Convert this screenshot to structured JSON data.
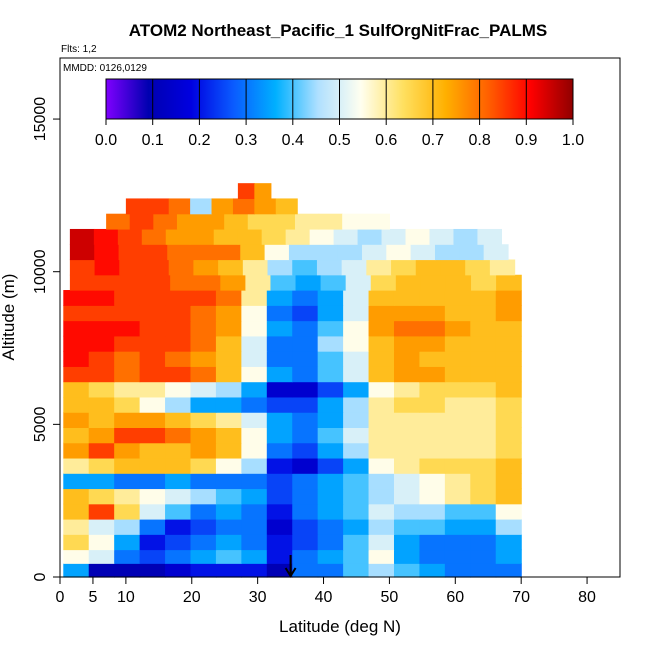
{
  "chart_data": {
    "type": "heatmap",
    "title": "ATOM2 Northeast_Pacific_1 SulfOrgNitFrac_PALMS",
    "flights_label": "Flts: 1,2",
    "dates_label": "MMDD: 0126,0129",
    "xlabel": "Latitude (deg N)",
    "ylabel": "Altitude (m)",
    "xlim": [
      0,
      85
    ],
    "ylim": [
      0,
      17000
    ],
    "x_ticks": [
      0,
      5,
      10,
      20,
      30,
      40,
      50,
      60,
      70,
      80
    ],
    "y_ticks": [
      0,
      5000,
      10000,
      15000
    ],
    "colorbar": {
      "min": 0.0,
      "max": 1.0,
      "tick_labels": [
        "0.0",
        "0.1",
        "0.2",
        "0.3",
        "0.4",
        "0.5",
        "0.6",
        "0.7",
        "0.8",
        "0.9",
        "1.0"
      ],
      "stops": [
        "#7f00ff",
        "#0000b0",
        "#0000e0",
        "#0a5bff",
        "#00b0ff",
        "#b0e0ff",
        "#fffff0",
        "#ffe060",
        "#ffb000",
        "#ff6000",
        "#ff0000",
        "#900000"
      ]
    },
    "marker_latitude": 35,
    "rows": [
      {
        "alt_bottom": 0,
        "alt_top": 450,
        "lat_start": 0.5,
        "lat_end": 70,
        "values": [
          0.35,
          0.1,
          0.1,
          0.1,
          0.15,
          0.2,
          0.2,
          0.2,
          0.1,
          0.3,
          0.3,
          0.4,
          0.45,
          0.4,
          0.35,
          0.3,
          0.3,
          0.3
        ]
      },
      {
        "alt_bottom": 450,
        "alt_top": 900,
        "lat_start": 0.5,
        "lat_end": 70,
        "values": [
          0.55,
          0.5,
          0.3,
          0.25,
          0.3,
          0.35,
          0.4,
          0.35,
          0.2,
          0.3,
          0.35,
          0.4,
          0.55,
          0.35,
          0.3,
          0.3,
          0.3,
          0.35
        ]
      },
      {
        "alt_bottom": 900,
        "alt_top": 1400,
        "lat_start": 0.5,
        "lat_end": 70,
        "values": [
          0.65,
          0.55,
          0.35,
          0.2,
          0.25,
          0.3,
          0.35,
          0.3,
          0.2,
          0.25,
          0.3,
          0.4,
          0.5,
          0.35,
          0.3,
          0.3,
          0.3,
          0.35
        ]
      },
      {
        "alt_bottom": 1400,
        "alt_top": 1900,
        "lat_start": 0.5,
        "lat_end": 70,
        "values": [
          0.6,
          0.5,
          0.45,
          0.3,
          0.2,
          0.25,
          0.3,
          0.3,
          0.15,
          0.25,
          0.3,
          0.35,
          0.45,
          0.4,
          0.4,
          0.35,
          0.35,
          0.45
        ]
      },
      {
        "alt_bottom": 1900,
        "alt_top": 2400,
        "lat_start": 0.5,
        "lat_end": 70,
        "values": [
          0.7,
          0.85,
          0.65,
          0.5,
          0.4,
          0.3,
          0.35,
          0.3,
          0.2,
          0.3,
          0.35,
          0.4,
          0.5,
          0.45,
          0.45,
          0.4,
          0.4,
          0.55
        ]
      },
      {
        "alt_bottom": 2400,
        "alt_top": 2900,
        "lat_start": 0.5,
        "lat_end": 70,
        "values": [
          0.7,
          0.65,
          0.6,
          0.55,
          0.5,
          0.45,
          0.4,
          0.35,
          0.25,
          0.3,
          0.35,
          0.4,
          0.45,
          0.5,
          0.55,
          0.6,
          0.65,
          0.7
        ]
      },
      {
        "alt_bottom": 2900,
        "alt_top": 3400,
        "lat_start": 0.5,
        "lat_end": 70,
        "values": [
          0.35,
          0.35,
          0.3,
          0.3,
          0.35,
          0.3,
          0.3,
          0.3,
          0.25,
          0.3,
          0.35,
          0.4,
          0.45,
          0.5,
          0.55,
          0.6,
          0.65,
          0.7
        ]
      },
      {
        "alt_bottom": 3400,
        "alt_top": 3900,
        "lat_start": 0.5,
        "lat_end": 70,
        "values": [
          0.6,
          0.65,
          0.7,
          0.7,
          0.7,
          0.65,
          0.55,
          0.45,
          0.2,
          0.15,
          0.25,
          0.35,
          0.55,
          0.6,
          0.65,
          0.65,
          0.65,
          0.7
        ]
      },
      {
        "alt_bottom": 3900,
        "alt_top": 4400,
        "lat_start": 0.5,
        "lat_end": 70,
        "values": [
          0.75,
          0.85,
          0.75,
          0.7,
          0.7,
          0.75,
          0.7,
          0.55,
          0.3,
          0.25,
          0.35,
          0.45,
          0.6,
          0.6,
          0.6,
          0.6,
          0.6,
          0.65
        ]
      },
      {
        "alt_bottom": 4400,
        "alt_top": 4900,
        "lat_start": 0.5,
        "lat_end": 70,
        "values": [
          0.7,
          0.75,
          0.85,
          0.85,
          0.8,
          0.75,
          0.7,
          0.55,
          0.35,
          0.3,
          0.4,
          0.5,
          0.6,
          0.6,
          0.6,
          0.6,
          0.6,
          0.65
        ]
      },
      {
        "alt_bottom": 4900,
        "alt_top": 5400,
        "lat_start": 0.5,
        "lat_end": 70,
        "values": [
          0.75,
          0.7,
          0.75,
          0.75,
          0.7,
          0.65,
          0.6,
          0.5,
          0.35,
          0.3,
          0.35,
          0.45,
          0.6,
          0.6,
          0.6,
          0.6,
          0.6,
          0.65
        ]
      },
      {
        "alt_bottom": 5400,
        "alt_top": 5900,
        "lat_start": 0.5,
        "lat_end": 70,
        "values": [
          0.7,
          0.7,
          0.65,
          0.55,
          0.45,
          0.35,
          0.35,
          0.3,
          0.25,
          0.25,
          0.35,
          0.45,
          0.6,
          0.65,
          0.65,
          0.6,
          0.6,
          0.65
        ]
      },
      {
        "alt_bottom": 5900,
        "alt_top": 6400,
        "lat_start": 0.5,
        "lat_end": 70,
        "values": [
          0.7,
          0.65,
          0.6,
          0.6,
          0.55,
          0.5,
          0.45,
          0.35,
          0.15,
          0.15,
          0.25,
          0.35,
          0.55,
          0.6,
          0.65,
          0.65,
          0.65,
          0.7
        ]
      },
      {
        "alt_bottom": 6400,
        "alt_top": 6900,
        "lat_start": 0.5,
        "lat_end": 70,
        "values": [
          0.85,
          0.85,
          0.8,
          0.85,
          0.85,
          0.8,
          0.7,
          0.55,
          0.35,
          0.3,
          0.4,
          0.5,
          0.7,
          0.75,
          0.75,
          0.7,
          0.7,
          0.7
        ]
      },
      {
        "alt_bottom": 6900,
        "alt_top": 7400,
        "lat_start": 0.5,
        "lat_end": 70,
        "values": [
          0.9,
          0.85,
          0.8,
          0.85,
          0.8,
          0.75,
          0.7,
          0.5,
          0.3,
          0.3,
          0.4,
          0.5,
          0.7,
          0.75,
          0.7,
          0.7,
          0.7,
          0.7
        ]
      },
      {
        "alt_bottom": 7400,
        "alt_top": 7900,
        "lat_start": 0.5,
        "lat_end": 70,
        "values": [
          0.9,
          0.9,
          0.85,
          0.85,
          0.85,
          0.8,
          0.7,
          0.5,
          0.3,
          0.3,
          0.45,
          0.55,
          0.7,
          0.75,
          0.75,
          0.7,
          0.7,
          0.7
        ]
      },
      {
        "alt_bottom": 7900,
        "alt_top": 8400,
        "lat_start": 0.5,
        "lat_end": 70,
        "values": [
          0.9,
          0.9,
          0.9,
          0.85,
          0.85,
          0.8,
          0.75,
          0.55,
          0.35,
          0.3,
          0.4,
          0.55,
          0.75,
          0.8,
          0.8,
          0.75,
          0.7,
          0.7
        ]
      },
      {
        "alt_bottom": 8400,
        "alt_top": 8900,
        "lat_start": 0.5,
        "lat_end": 70,
        "values": [
          0.85,
          0.85,
          0.85,
          0.85,
          0.85,
          0.8,
          0.75,
          0.55,
          0.3,
          0.25,
          0.35,
          0.5,
          0.75,
          0.75,
          0.75,
          0.7,
          0.7,
          0.75
        ]
      },
      {
        "alt_bottom": 8900,
        "alt_top": 9400,
        "lat_start": 0.5,
        "lat_end": 70,
        "values": [
          0.9,
          0.9,
          0.85,
          0.85,
          0.85,
          0.85,
          0.8,
          0.6,
          0.35,
          0.3,
          0.35,
          0.5,
          0.7,
          0.7,
          0.7,
          0.7,
          0.7,
          0.75
        ]
      },
      {
        "alt_bottom": 9400,
        "alt_top": 9900,
        "lat_start": 1.5,
        "lat_end": 70,
        "values": [
          0.85,
          0.85,
          0.85,
          0.85,
          0.8,
          0.8,
          0.75,
          0.6,
          0.4,
          0.35,
          0.4,
          0.5,
          0.65,
          0.7,
          0.7,
          0.7,
          0.65,
          0.7
        ]
      },
      {
        "alt_bottom": 9900,
        "alt_top": 10400,
        "lat_start": 1.5,
        "lat_end": 69,
        "values": [
          0.85,
          0.9,
          0.85,
          0.85,
          0.8,
          0.75,
          0.7,
          0.6,
          0.45,
          0.4,
          0.45,
          0.5,
          0.6,
          0.65,
          0.7,
          0.7,
          0.65,
          0.6
        ]
      },
      {
        "alt_bottom": 10400,
        "alt_top": 10900,
        "lat_start": 1.5,
        "lat_end": 68,
        "values": [
          0.95,
          0.9,
          0.85,
          0.85,
          0.8,
          0.8,
          0.8,
          0.7,
          0.55,
          0.45,
          0.45,
          0.45,
          0.5,
          0.55,
          0.5,
          0.45,
          0.45,
          0.5
        ]
      },
      {
        "alt_bottom": 10900,
        "alt_top": 11400,
        "lat_start": 1.5,
        "lat_end": 67,
        "values": [
          0.95,
          0.9,
          0.85,
          0.8,
          0.75,
          0.75,
          0.7,
          0.7,
          0.65,
          0.6,
          0.55,
          0.5,
          0.45,
          0.5,
          0.55,
          0.5,
          0.45,
          0.5
        ]
      },
      {
        "alt_bottom": 11400,
        "alt_top": 11900,
        "lat_start": 7,
        "lat_end": 50,
        "values": [
          0.8,
          0.85,
          0.8,
          0.75,
          0.75,
          0.7,
          0.65,
          0.65,
          0.6,
          0.6,
          0.55,
          0.55
        ]
      },
      {
        "alt_bottom": 11900,
        "alt_top": 12400,
        "lat_start": 10,
        "lat_end": 36,
        "values": [
          0.85,
          0.85,
          0.8,
          0.45,
          0.75,
          0.8,
          0.75,
          0.7
        ]
      },
      {
        "alt_bottom": 12400,
        "alt_top": 12900,
        "lat_start": 27,
        "lat_end": 32,
        "values": [
          0.85,
          0.75
        ]
      }
    ]
  }
}
